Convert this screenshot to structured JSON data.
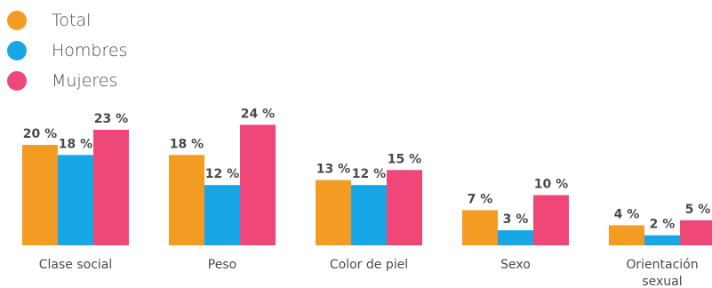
{
  "chart_data": {
    "type": "bar",
    "categories": [
      "Clase social",
      "Peso",
      "Color de piel",
      "Sexo",
      "Orientación sexual"
    ],
    "series": [
      {
        "name": "Total",
        "color": "#f39c23",
        "values": [
          20,
          18,
          13,
          7,
          4
        ],
        "labels": [
          "20 %",
          "18 %",
          "13 %",
          "7 %",
          "4 %"
        ]
      },
      {
        "name": "Hombres",
        "color": "#17a7e6",
        "values": [
          18,
          12,
          12,
          3,
          2
        ],
        "labels": [
          "18 %",
          "12 %",
          "12 %",
          "3 %",
          "2 %"
        ]
      },
      {
        "name": "Mujeres",
        "color": "#ef4778",
        "values": [
          23,
          24,
          15,
          10,
          5
        ],
        "labels": [
          "23 %",
          "24 %",
          "15 %",
          "10 %",
          "5 %"
        ]
      }
    ],
    "legend_position": "top-left",
    "grid": false
  }
}
